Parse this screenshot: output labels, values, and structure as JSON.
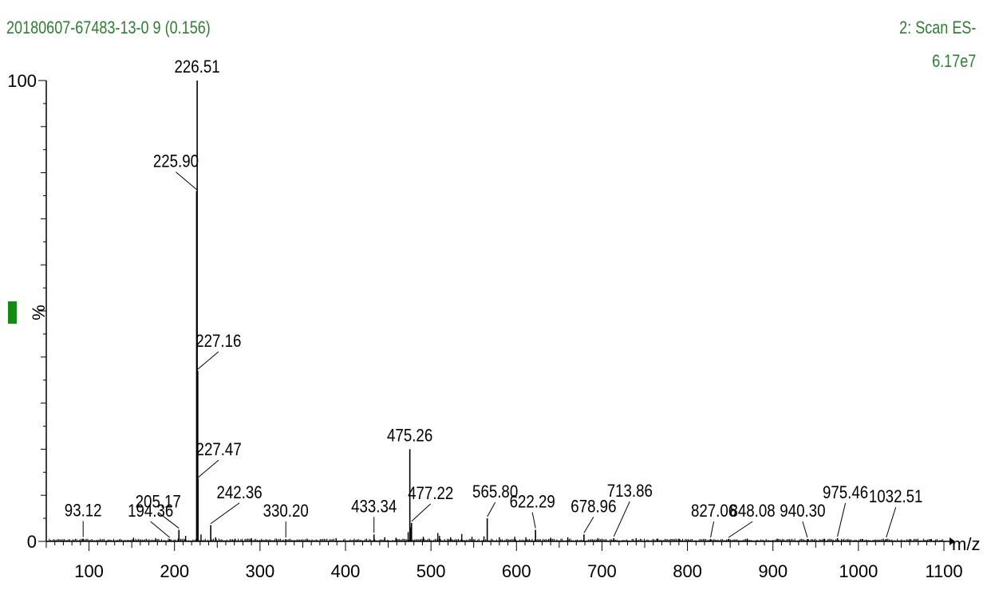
{
  "header": {
    "sample": "20180607-67483-13-0 9 (0.156)",
    "scan": "2: Scan ES-",
    "intensity": "6.17e7"
  },
  "colors": {
    "header": "#2e7d32",
    "marker": "#138a13",
    "axis": "#000000"
  },
  "chart_data": {
    "type": "bar",
    "title": "",
    "xlabel": "m/z",
    "ylabel": "%",
    "xlim": [
      50,
      1100
    ],
    "ylim": [
      0,
      100
    ],
    "x_ticks": [
      100,
      200,
      300,
      400,
      500,
      600,
      700,
      800,
      900,
      1000,
      1100
    ],
    "y_ticks": [
      0,
      100
    ],
    "labeled_peaks": [
      {
        "mz": 93.12,
        "intensity": 0.6,
        "label": "93.12"
      },
      {
        "mz": 194.36,
        "intensity": 0.5,
        "label": "194.36"
      },
      {
        "mz": 205.17,
        "intensity": 2.5,
        "label": "205.17"
      },
      {
        "mz": 225.9,
        "intensity": 76,
        "label": "225.90"
      },
      {
        "mz": 226.51,
        "intensity": 100,
        "label": "226.51"
      },
      {
        "mz": 227.16,
        "intensity": 37,
        "label": "227.16"
      },
      {
        "mz": 227.47,
        "intensity": 13.5,
        "label": "227.47"
      },
      {
        "mz": 242.36,
        "intensity": 3.5,
        "label": "242.36"
      },
      {
        "mz": 330.2,
        "intensity": 0.5,
        "label": "330.20"
      },
      {
        "mz": 433.34,
        "intensity": 1.5,
        "label": "433.34"
      },
      {
        "mz": 475.26,
        "intensity": 20,
        "label": "475.26"
      },
      {
        "mz": 477.22,
        "intensity": 4,
        "label": "477.22"
      },
      {
        "mz": 565.8,
        "intensity": 5,
        "label": "565.80"
      },
      {
        "mz": 622.29,
        "intensity": 2.5,
        "label": "622.29"
      },
      {
        "mz": 678.96,
        "intensity": 1.5,
        "label": "678.96"
      },
      {
        "mz": 713.86,
        "intensity": 0.7,
        "label": "713.86"
      },
      {
        "mz": 827.06,
        "intensity": 0.5,
        "label": "827.06"
      },
      {
        "mz": 848.08,
        "intensity": 0.5,
        "label": "848.08"
      },
      {
        "mz": 940.3,
        "intensity": 0.5,
        "label": "940.30"
      },
      {
        "mz": 975.46,
        "intensity": 0.7,
        "label": "975.46"
      },
      {
        "mz": 1032.51,
        "intensity": 0.5,
        "label": "1032.51"
      }
    ],
    "minor_peaks": [
      {
        "mz": 152,
        "intensity": 0.8
      },
      {
        "mz": 178,
        "intensity": 0.7
      },
      {
        "mz": 213,
        "intensity": 1.2
      },
      {
        "mz": 231,
        "intensity": 1.5
      },
      {
        "mz": 248,
        "intensity": 0.9
      },
      {
        "mz": 271,
        "intensity": 0.6
      },
      {
        "mz": 290,
        "intensity": 0.7
      },
      {
        "mz": 355,
        "intensity": 0.6
      },
      {
        "mz": 389,
        "intensity": 0.7
      },
      {
        "mz": 446,
        "intensity": 0.9
      },
      {
        "mz": 459,
        "intensity": 0.8
      },
      {
        "mz": 473.3,
        "intensity": 2.0
      },
      {
        "mz": 476.3,
        "intensity": 3.0
      },
      {
        "mz": 491,
        "intensity": 1.0
      },
      {
        "mz": 508,
        "intensity": 1.8
      },
      {
        "mz": 510,
        "intensity": 1.2
      },
      {
        "mz": 523,
        "intensity": 0.9
      },
      {
        "mz": 536,
        "intensity": 1.6
      },
      {
        "mz": 548,
        "intensity": 1.0
      },
      {
        "mz": 562,
        "intensity": 1.1
      },
      {
        "mz": 580,
        "intensity": 0.9
      },
      {
        "mz": 598,
        "intensity": 1.0
      },
      {
        "mz": 611,
        "intensity": 0.9
      },
      {
        "mz": 640,
        "intensity": 0.8
      },
      {
        "mz": 660,
        "intensity": 0.9
      },
      {
        "mz": 695,
        "intensity": 0.7
      },
      {
        "mz": 740,
        "intensity": 0.7
      },
      {
        "mz": 765,
        "intensity": 0.6
      },
      {
        "mz": 790,
        "intensity": 0.6
      },
      {
        "mz": 870,
        "intensity": 0.6
      },
      {
        "mz": 905,
        "intensity": 0.6
      },
      {
        "mz": 960,
        "intensity": 0.6
      },
      {
        "mz": 1005,
        "intensity": 0.5
      },
      {
        "mz": 1060,
        "intensity": 0.5
      },
      {
        "mz": 1085,
        "intensity": 0.5
      }
    ]
  }
}
